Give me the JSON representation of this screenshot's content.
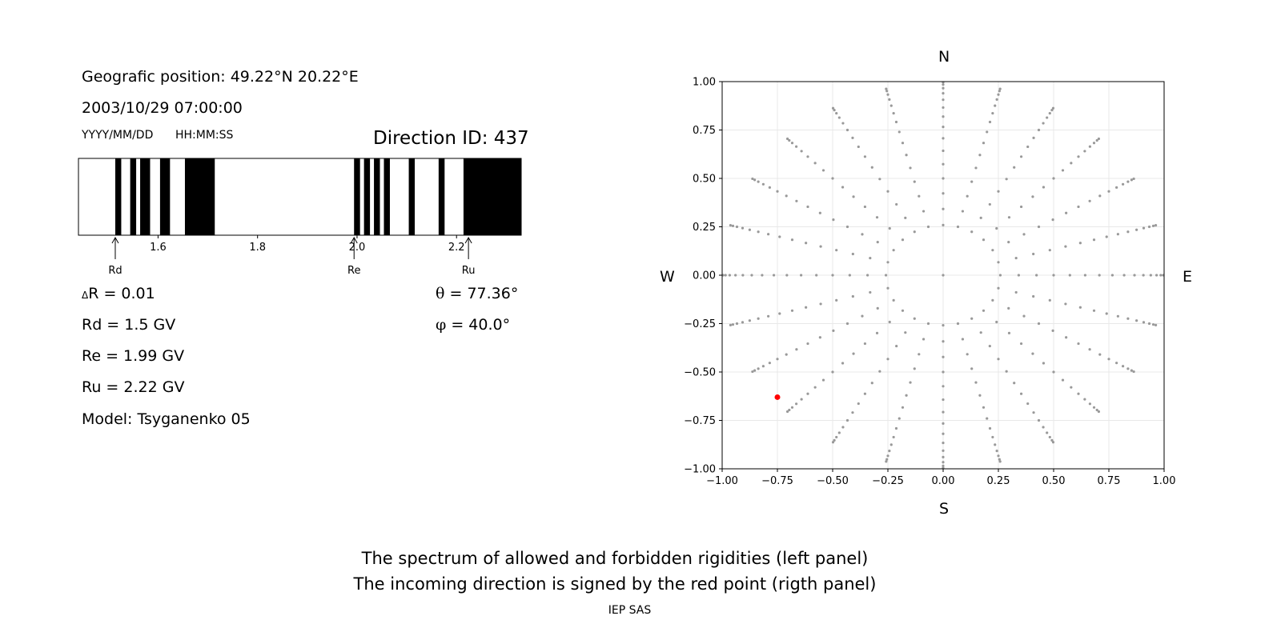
{
  "header": {
    "position": "Geografic position: 49.22°N 20.22°E",
    "datetime": "2003/10/29 07:00:00",
    "date_format": "YYYY/MM/DD",
    "time_format": "HH:MM:SS",
    "direction_id": "Direction ID: 437"
  },
  "params": {
    "delta_r": "R = 0.01",
    "delta_symbol": "Δ",
    "rd": "Rd = 1.5 GV",
    "re": "Re = 1.99 GV",
    "ru": "Ru = 2.22 GV",
    "model": "Model: Tsyganenko 05",
    "theta_symbol": "θ",
    "theta": " = 77.36°",
    "phi_symbol": "φ",
    "phi": " = 40.0°"
  },
  "compass": {
    "n": "N",
    "s": "S",
    "w": "W",
    "e": "E"
  },
  "caption": {
    "line1": "The spectrum of allowed and forbidden rigidities (left panel)",
    "line2": "The incoming direction is signed by the red point (rigth panel)",
    "footer": "IEP SAS"
  },
  "chart_data": [
    {
      "type": "bar",
      "name": "rigidity spectrum",
      "xlim": [
        1.44,
        2.33
      ],
      "xticks": [
        1.6,
        1.8,
        2.0,
        2.2
      ],
      "xtick_labels": [
        "1.6",
        "1.8",
        "2.0",
        "2.2"
      ],
      "forbidden_intervals": [
        [
          1.514,
          1.526
        ],
        [
          1.544,
          1.556
        ],
        [
          1.564,
          1.584
        ],
        [
          1.604,
          1.624
        ],
        [
          1.654,
          1.714
        ],
        [
          1.994,
          2.006
        ],
        [
          2.014,
          2.026
        ],
        [
          2.034,
          2.046
        ],
        [
          2.054,
          2.066
        ],
        [
          2.104,
          2.116
        ],
        [
          2.164,
          2.176
        ],
        [
          2.214,
          2.33
        ]
      ],
      "markers": [
        {
          "label": "Rd",
          "x": 1.514
        },
        {
          "label": "Re",
          "x": 1.994
        },
        {
          "label": "Ru",
          "x": 2.224
        }
      ],
      "colors": {
        "forbidden": "#000000",
        "allowed": "#ffffff"
      }
    },
    {
      "type": "scatter",
      "name": "direction grid",
      "xlim": [
        -1,
        1
      ],
      "ylim": [
        -1,
        1
      ],
      "xticks": [
        -1.0,
        -0.75,
        -0.5,
        -0.25,
        0.0,
        0.25,
        0.5,
        0.75,
        1.0
      ],
      "xtick_labels": [
        "−1.00",
        "−0.75",
        "−0.50",
        "−0.25",
        "0.00",
        "0.25",
        "0.50",
        "0.75",
        "1.00"
      ],
      "yticks": [
        -1.0,
        -0.75,
        -0.5,
        -0.25,
        0.0,
        0.25,
        0.5,
        0.75,
        1.0
      ],
      "ytick_labels": [
        "−1.00",
        "−0.75",
        "−0.50",
        "−0.25",
        "0.00",
        "0.25",
        "0.50",
        "0.75",
        "1.00"
      ],
      "grid": true,
      "grid_points": {
        "azimuth_step_deg": 15,
        "zenith_start_deg": 15,
        "zenith_step_deg": 5,
        "zenith_end_deg": 85,
        "radial": "cos(zenith)... projected as sin(zenith)"
      },
      "highlight": {
        "theta_deg": 77.36,
        "phi_deg": 40.0,
        "x": -0.75,
        "y": -0.63
      },
      "colors": {
        "points": "#999999",
        "highlight": "#ff0000"
      }
    }
  ]
}
